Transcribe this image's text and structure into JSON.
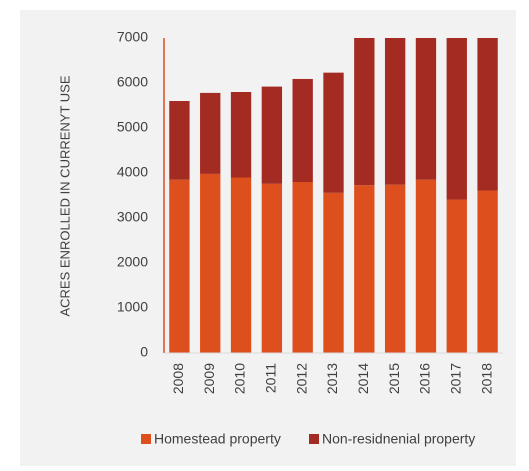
{
  "chart_data": {
    "type": "stacked_bar",
    "y_label": "ACRES ENROLLED IN CURRENYT USE",
    "categories": [
      "2008",
      "2009",
      "2010",
      "2011",
      "2012",
      "2013",
      "2014",
      "2015",
      "2016",
      "2017",
      "2018"
    ],
    "series": [
      {
        "name": "Homestead property",
        "color": "#dd4f1c",
        "values": [
          3850,
          3980,
          3900,
          3760,
          3800,
          3560,
          3730,
          3740,
          3850,
          3410,
          3610
        ]
      },
      {
        "name": "Non-residnenial property",
        "color": "#a32b21",
        "values": [
          1750,
          1800,
          1900,
          2160,
          2290,
          2670,
          3270,
          3260,
          3150,
          3590,
          3390
        ]
      }
    ],
    "ylim": [
      0,
      7000
    ],
    "yticks": [
      0,
      1000,
      2000,
      3000,
      4000,
      5000,
      6000,
      7000
    ],
    "grid": false,
    "legend": "bottom"
  }
}
